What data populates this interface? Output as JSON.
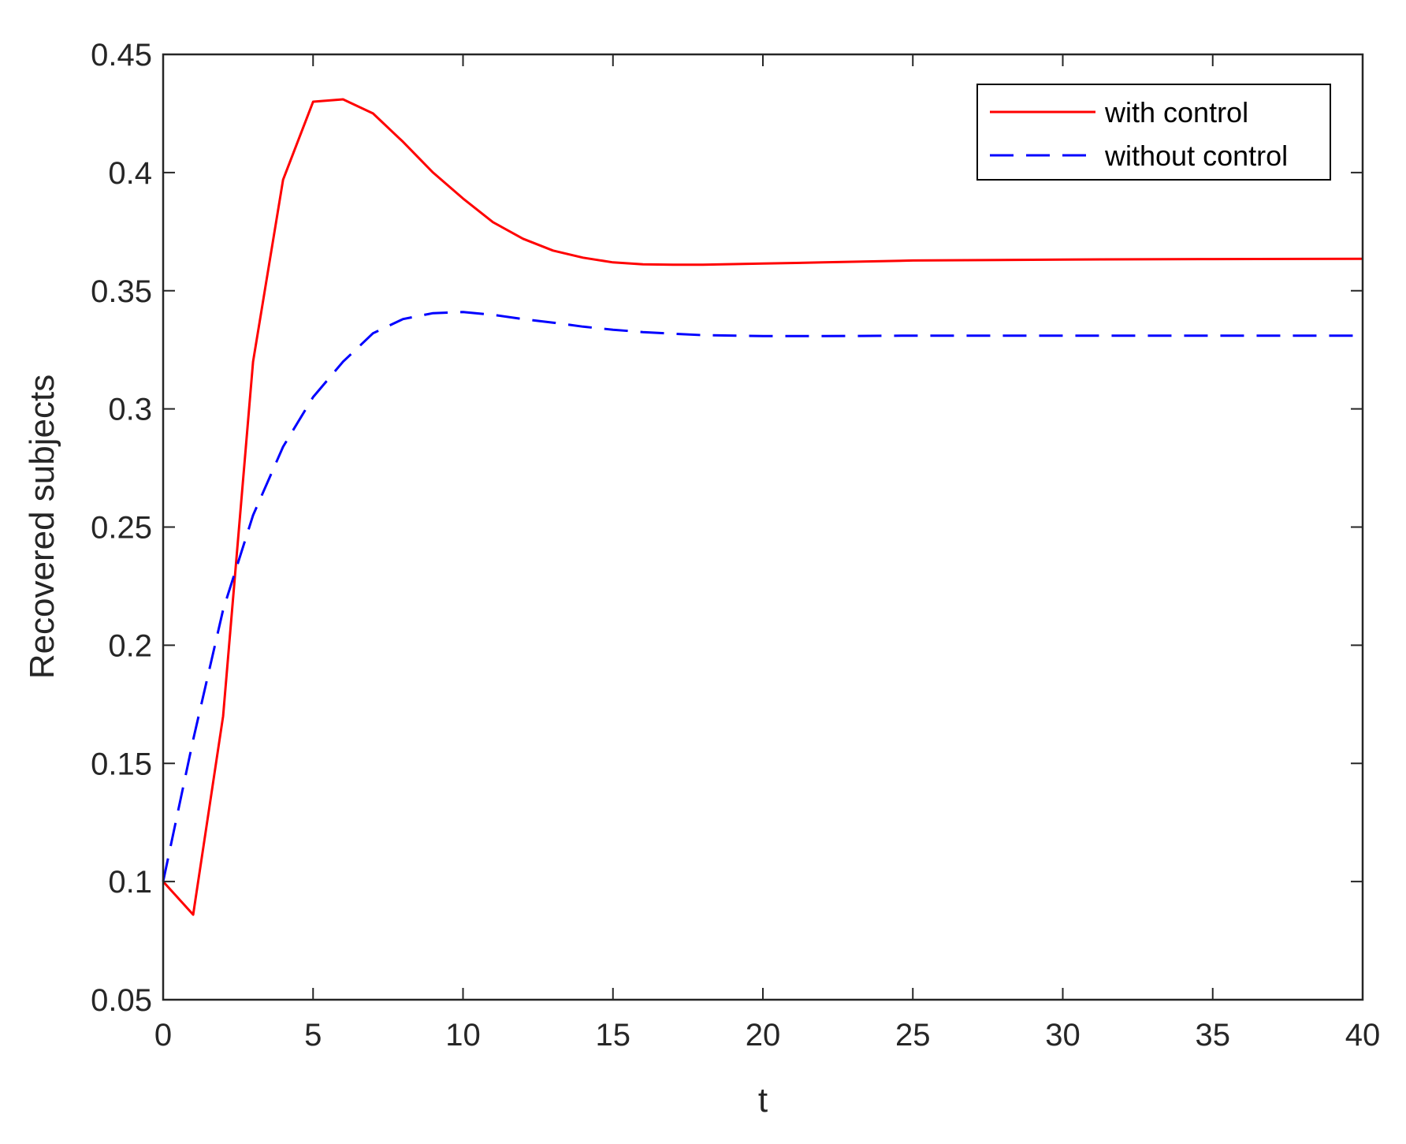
{
  "chart_data": {
    "type": "line",
    "title": "",
    "xlabel": "t",
    "ylabel": "Recovered subjects",
    "xlim": [
      0,
      40
    ],
    "ylim": [
      0.05,
      0.45
    ],
    "x_ticks": [
      0,
      5,
      10,
      15,
      20,
      25,
      30,
      35,
      40
    ],
    "x_tick_labels": [
      "0",
      "5",
      "10",
      "15",
      "20",
      "25",
      "30",
      "35",
      "40"
    ],
    "y_ticks": [
      0.05,
      0.1,
      0.15,
      0.2,
      0.25,
      0.3,
      0.35,
      0.4,
      0.45
    ],
    "y_tick_labels": [
      "0.05",
      "0.1",
      "0.15",
      "0.2",
      "0.25",
      "0.3",
      "0.35",
      "0.4",
      "0.45"
    ],
    "grid": false,
    "legend_position": "top-right",
    "series": [
      {
        "name": "with control",
        "color": "#ff0000",
        "line_style": "solid",
        "x": [
          0,
          1,
          2,
          3,
          4,
          5,
          6,
          7,
          8,
          9,
          10,
          11,
          12,
          13,
          14,
          15,
          16,
          17,
          18,
          20,
          22,
          25,
          30,
          35,
          40
        ],
        "y": [
          0.1,
          0.086,
          0.17,
          0.32,
          0.397,
          0.43,
          0.431,
          0.425,
          0.413,
          0.4,
          0.389,
          0.379,
          0.372,
          0.367,
          0.364,
          0.362,
          0.3612,
          0.361,
          0.361,
          0.3615,
          0.362,
          0.3628,
          0.3632,
          0.3634,
          0.3635
        ]
      },
      {
        "name": "without control",
        "color": "#0000ff",
        "line_style": "dashed",
        "x": [
          0,
          1,
          2,
          3,
          4,
          5,
          6,
          7,
          8,
          9,
          10,
          11,
          12,
          13,
          14,
          15,
          16,
          17,
          18,
          20,
          22,
          25,
          30,
          35,
          40
        ],
        "y": [
          0.1,
          0.16,
          0.215,
          0.255,
          0.284,
          0.305,
          0.32,
          0.332,
          0.338,
          0.3405,
          0.341,
          0.3398,
          0.338,
          0.3365,
          0.3348,
          0.3335,
          0.3325,
          0.3318,
          0.3312,
          0.3308,
          0.3308,
          0.331,
          0.331,
          0.331,
          0.331
        ]
      }
    ]
  }
}
